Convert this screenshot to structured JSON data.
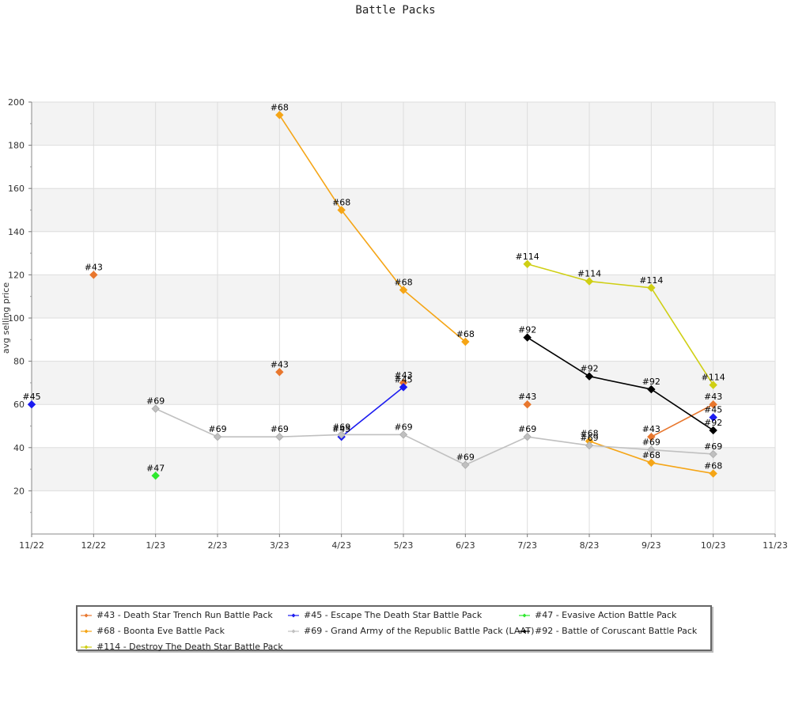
{
  "chart_data": {
    "type": "line",
    "title": "Battle Packs",
    "ylabel": "avg selling price",
    "xlabel": "",
    "x_ticks": [
      "11/22",
      "12/22",
      "1/23",
      "2/23",
      "3/23",
      "4/23",
      "5/23",
      "6/23",
      "7/23",
      "8/23",
      "9/23",
      "10/23",
      "11/23"
    ],
    "y_ticks": [
      20,
      40,
      60,
      80,
      100,
      120,
      140,
      160,
      180,
      200
    ],
    "ylim": [
      0,
      200
    ],
    "grid": true,
    "legend_position": "bottom",
    "series": [
      {
        "name": "#43 - Death Star Trench Run Battle Pack",
        "point_label": "#43",
        "color": "#e8772e",
        "points": [
          {
            "x": "12/22",
            "y": 120
          },
          {
            "x": "3/23",
            "y": 75
          },
          {
            "x": "5/23",
            "y": 70
          },
          {
            "x": "7/23",
            "y": 60
          },
          {
            "x": "9/23",
            "y": 45
          },
          {
            "x": "10/23",
            "y": 60
          }
        ],
        "connected": [
          false,
          false,
          false,
          false,
          true
        ]
      },
      {
        "name": "#45 - Escape The Death Star Battle Pack",
        "point_label": "#45",
        "color": "#1b1bf0",
        "points": [
          {
            "x": "11/22",
            "y": 60
          },
          {
            "x": "4/23",
            "y": 45
          },
          {
            "x": "5/23",
            "y": 68
          },
          {
            "x": "10/23",
            "y": 54
          }
        ],
        "connected": [
          false,
          true,
          false
        ]
      },
      {
        "name": "#47 - Evasive Action Battle Pack",
        "point_label": "#47",
        "color": "#2ee82e",
        "points": [
          {
            "x": "1/23",
            "y": 27
          }
        ],
        "connected": []
      },
      {
        "name": "#68 - Boonta Eve Battle Pack",
        "point_label": "#68",
        "color": "#f5a516",
        "points": [
          {
            "x": "3/23",
            "y": 194
          },
          {
            "x": "4/23",
            "y": 150
          },
          {
            "x": "5/23",
            "y": 113
          },
          {
            "x": "6/23",
            "y": 89
          },
          {
            "x": "8/23",
            "y": 43
          },
          {
            "x": "9/23",
            "y": 33
          },
          {
            "x": "10/23",
            "y": 28
          }
        ],
        "connected": [
          true,
          true,
          true,
          false,
          true,
          true
        ]
      },
      {
        "name": "#69 - Grand Army of the Republic Battle Pack (LAAT)",
        "point_label": "#69",
        "color": "#c0c0c0",
        "points": [
          {
            "x": "1/23",
            "y": 58
          },
          {
            "x": "2/23",
            "y": 45
          },
          {
            "x": "3/23",
            "y": 45
          },
          {
            "x": "4/23",
            "y": 46
          },
          {
            "x": "5/23",
            "y": 46
          },
          {
            "x": "6/23",
            "y": 32
          },
          {
            "x": "7/23",
            "y": 45
          },
          {
            "x": "8/23",
            "y": 41
          },
          {
            "x": "9/23",
            "y": 39
          },
          {
            "x": "10/23",
            "y": 37
          }
        ],
        "connected": [
          true,
          true,
          true,
          true,
          true,
          true,
          true,
          true,
          true
        ]
      },
      {
        "name": "#92 - Battle of Coruscant Battle Pack",
        "point_label": "#92",
        "color": "#000000",
        "points": [
          {
            "x": "7/23",
            "y": 91
          },
          {
            "x": "8/23",
            "y": 73
          },
          {
            "x": "9/23",
            "y": 67
          },
          {
            "x": "10/23",
            "y": 48
          }
        ],
        "connected": [
          true,
          true,
          true
        ]
      },
      {
        "name": "#114 - Destroy The Death Star Battle Pack",
        "point_label": "#114",
        "color": "#cfcf14",
        "points": [
          {
            "x": "7/23",
            "y": 125
          },
          {
            "x": "8/23",
            "y": 117
          },
          {
            "x": "9/23",
            "y": 114
          },
          {
            "x": "10/23",
            "y": 69
          }
        ],
        "connected": [
          true,
          true,
          true
        ]
      }
    ]
  }
}
